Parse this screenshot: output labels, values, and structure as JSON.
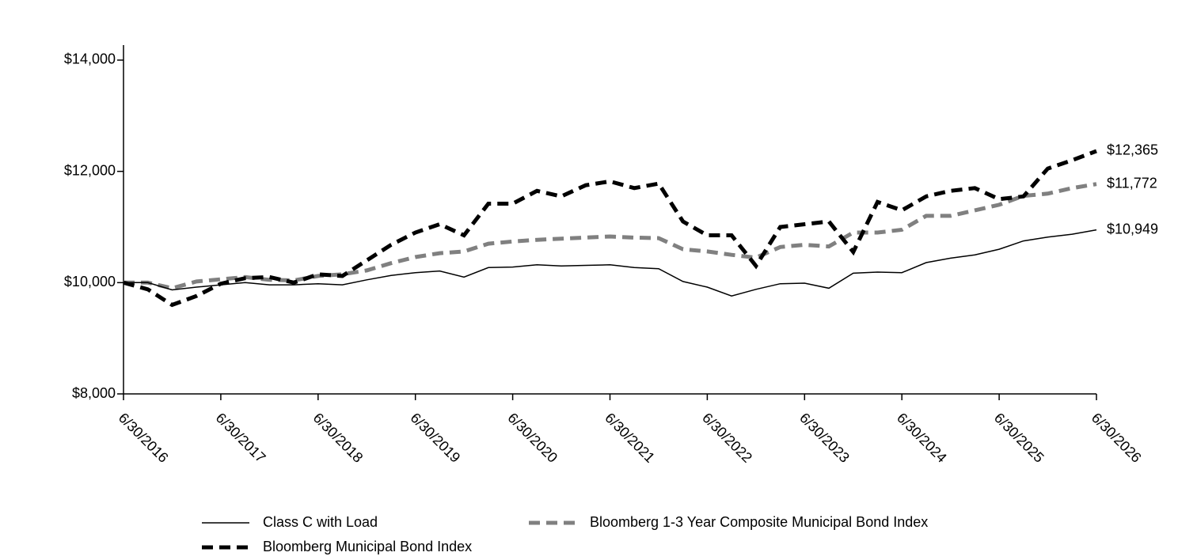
{
  "chart_data": {
    "type": "line",
    "categories": [
      "6/30/2016",
      null,
      null,
      null,
      "6/30/2017",
      null,
      null,
      null,
      "6/30/2018",
      null,
      null,
      null,
      "6/30/2019",
      null,
      null,
      null,
      "6/30/2020",
      null,
      null,
      null,
      "6/30/2021",
      null,
      null,
      null,
      "6/30/2022",
      null,
      null,
      null,
      "6/30/2023",
      null,
      null,
      null,
      "6/30/2024",
      null,
      null,
      null,
      "6/30/2025",
      null,
      null,
      null,
      "6/30/2026"
    ],
    "series": [
      {
        "name": "Class C with Load",
        "color": "#000000",
        "style": "solid",
        "values": [
          10000,
          10000,
          9870,
          9920,
          9960,
          10000,
          9960,
          9960,
          9980,
          9960,
          10050,
          10130,
          10180,
          10210,
          10100,
          10270,
          10280,
          10320,
          10300,
          10310,
          10320,
          10270,
          10250,
          10020,
          9920,
          9760,
          9880,
          9980,
          9990,
          9900,
          10170,
          10190,
          10180,
          10360,
          10440,
          10500,
          10600,
          10750,
          10820,
          10870,
          10949
        ],
        "value_labels": [
          null,
          null,
          null,
          null,
          null,
          null,
          null,
          null,
          null,
          null,
          null,
          null,
          null,
          null,
          null,
          null,
          null,
          null,
          null,
          null,
          null,
          null,
          null,
          null,
          null,
          null,
          null,
          null,
          null,
          null,
          null,
          null,
          null,
          null,
          null,
          null,
          null,
          null,
          null,
          null,
          "$10,949"
        ]
      },
      {
        "name": "Bloomberg Municipal Bond Index",
        "color": "#000000",
        "style": "dashed",
        "values": [
          10000,
          9880,
          9600,
          9760,
          9980,
          10080,
          10100,
          10000,
          10150,
          10120,
          10400,
          10680,
          10900,
          11050,
          10850,
          11420,
          11420,
          11650,
          11550,
          11750,
          11820,
          11700,
          11780,
          11100,
          10850,
          10850,
          10300,
          11000,
          11050,
          11100,
          10550,
          11450,
          11300,
          11550,
          11650,
          11700,
          11500,
          11550,
          12050,
          12200,
          12365
        ],
        "value_labels": [
          null,
          null,
          null,
          null,
          null,
          null,
          null,
          null,
          null,
          null,
          null,
          null,
          null,
          null,
          null,
          null,
          null,
          null,
          null,
          null,
          null,
          null,
          null,
          null,
          null,
          null,
          null,
          null,
          null,
          null,
          null,
          null,
          null,
          null,
          null,
          null,
          null,
          null,
          null,
          null,
          "$12,365"
        ]
      },
      {
        "name": "Bloomberg 1-3 Year Composite Municipal Bond Index",
        "color": "#808080",
        "style": "dashed",
        "values": [
          10000,
          10000,
          9900,
          10020,
          10060,
          10100,
          10050,
          10040,
          10120,
          10150,
          10220,
          10350,
          10460,
          10530,
          10560,
          10700,
          10740,
          10770,
          10790,
          10810,
          10830,
          10810,
          10800,
          10600,
          10560,
          10500,
          10450,
          10640,
          10680,
          10650,
          10900,
          10900,
          10950,
          11200,
          11200,
          11300,
          11400,
          11560,
          11600,
          11700,
          11772
        ],
        "value_labels": [
          null,
          null,
          null,
          null,
          null,
          null,
          null,
          null,
          null,
          null,
          null,
          null,
          null,
          null,
          null,
          null,
          null,
          null,
          null,
          null,
          null,
          null,
          null,
          null,
          null,
          null,
          null,
          null,
          null,
          null,
          null,
          null,
          null,
          null,
          null,
          null,
          null,
          null,
          null,
          null,
          "$11,772"
        ]
      }
    ],
    "ylim": [
      8000,
      14270
    ],
    "yticks": [
      {
        "value": 8000,
        "label": "$8,000"
      },
      {
        "value": 10000,
        "label": "$10,000"
      },
      {
        "value": 12000,
        "label": "$12,000"
      },
      {
        "value": 14000,
        "label": "$14,000"
      }
    ],
    "grid": false
  }
}
